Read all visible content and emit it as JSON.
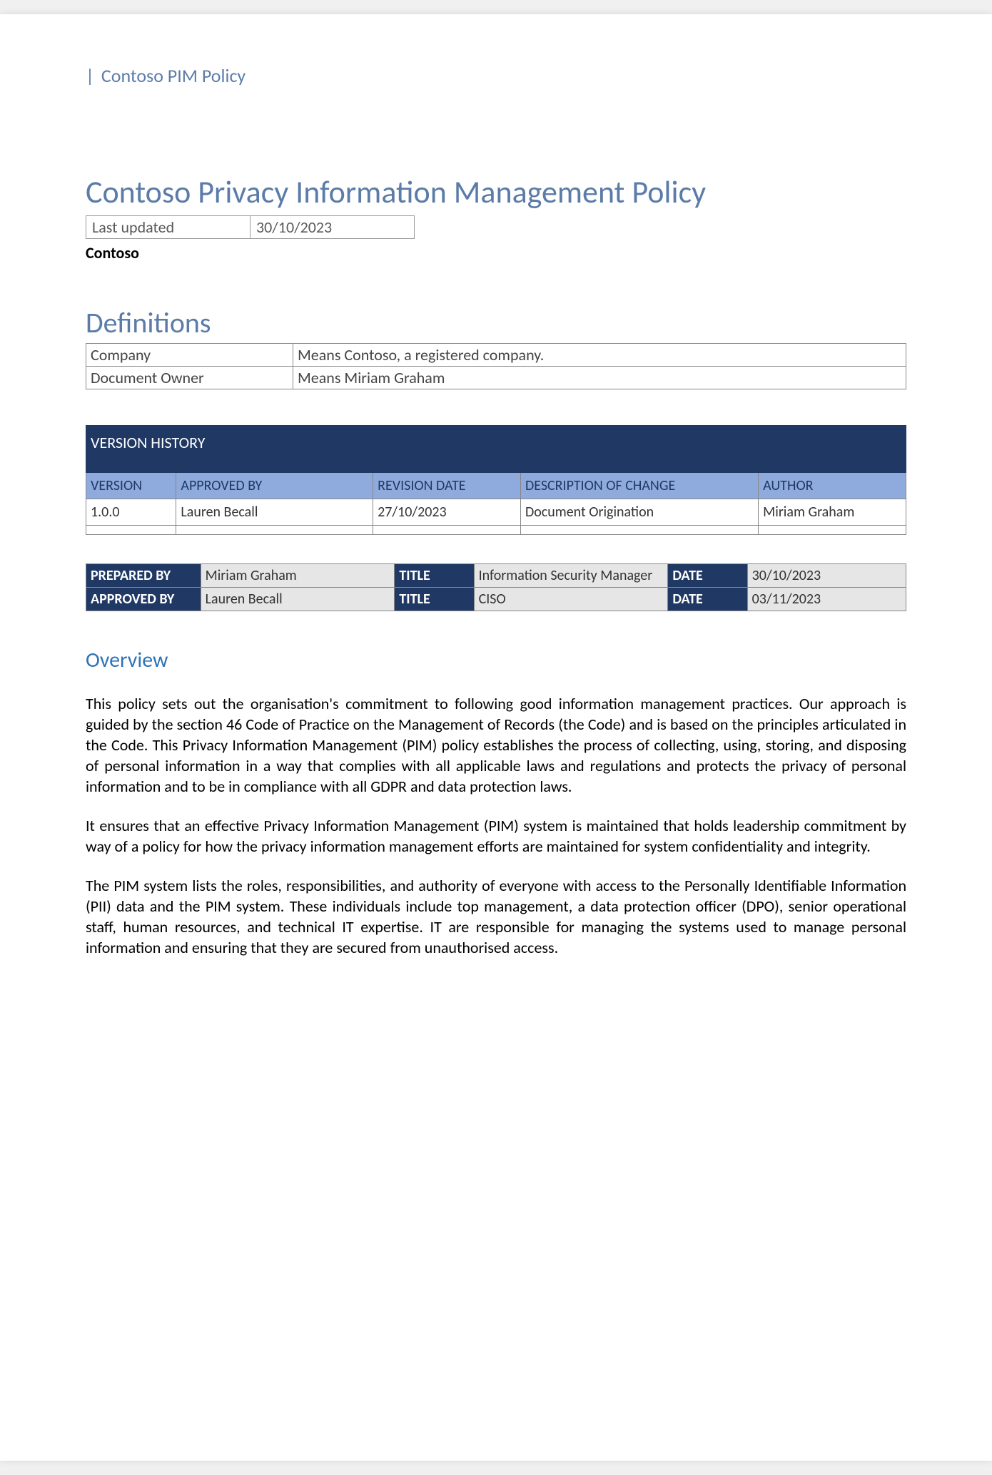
{
  "header": {
    "text": "Contoso PIM Policy"
  },
  "title": "Contoso Privacy Information Management Policy",
  "meta": {
    "last_updated_label": "Last updated",
    "last_updated_value": "30/10/2023"
  },
  "company": "Contoso",
  "definitions": {
    "heading": "Definitions",
    "rows": [
      {
        "term": "Company",
        "meaning": "Means Contoso, a registered company."
      },
      {
        "term": "Document Owner",
        "meaning": "Means Miriam Graham"
      }
    ]
  },
  "version_history": {
    "title": "VERSION HISTORY",
    "columns": [
      "VERSION",
      "APPROVED BY",
      "REVISION DATE",
      "DESCRIPTION OF CHANGE",
      "AUTHOR"
    ],
    "rows": [
      {
        "version": "1.0.0",
        "approved_by": "Lauren Becall",
        "revision_date": "27/10/2023",
        "description": "Document Origination",
        "author": "Miriam Graham"
      },
      {
        "version": "",
        "approved_by": "",
        "revision_date": "",
        "description": "",
        "author": ""
      }
    ]
  },
  "approval": {
    "labels": {
      "prepared_by": "PREPARED BY",
      "approved_by": "APPROVED BY",
      "title": "TITLE",
      "date": "DATE"
    },
    "prepared": {
      "name": "Miriam Graham",
      "title": "Information Security Manager",
      "date": "30/10/2023"
    },
    "approved": {
      "name": "Lauren Becall",
      "title": "CISO",
      "date": "03/11/2023"
    }
  },
  "overview": {
    "heading": "Overview",
    "paragraphs": [
      "This policy sets out the organisation's commitment to following good information management practices. Our approach is guided by the section 46 Code of Practice on the Management of Records (the Code) and is based on the principles articulated in the Code. This Privacy Information Management (PIM) policy establishes the process of collecting, using, storing, and disposing of personal information in a way that complies with all applicable laws and regulations and protects the privacy of personal information and to be in compliance with all GDPR and data protection laws.",
      "It ensures that an effective Privacy Information Management (PIM) system is maintained that holds leadership commitment by way of a policy for how the privacy information management efforts are maintained for system confidentiality and integrity.",
      "The PIM system lists the roles, responsibilities, and authority of everyone with access to the Personally Identifiable Information (PII) data and the PIM system. These individuals include top management, a data protection officer (DPO), senior operational staff, human resources, and technical IT expertise. IT are responsible for managing the systems used to manage personal information and ensuring that they are secured from unauthorised access."
    ]
  },
  "colors": {
    "heading_blue": "#5b7ca8",
    "dark_navy": "#1f3864",
    "light_blue": "#8faadc",
    "light_gray": "#e7e6e6",
    "overview_blue": "#2e74b5"
  }
}
